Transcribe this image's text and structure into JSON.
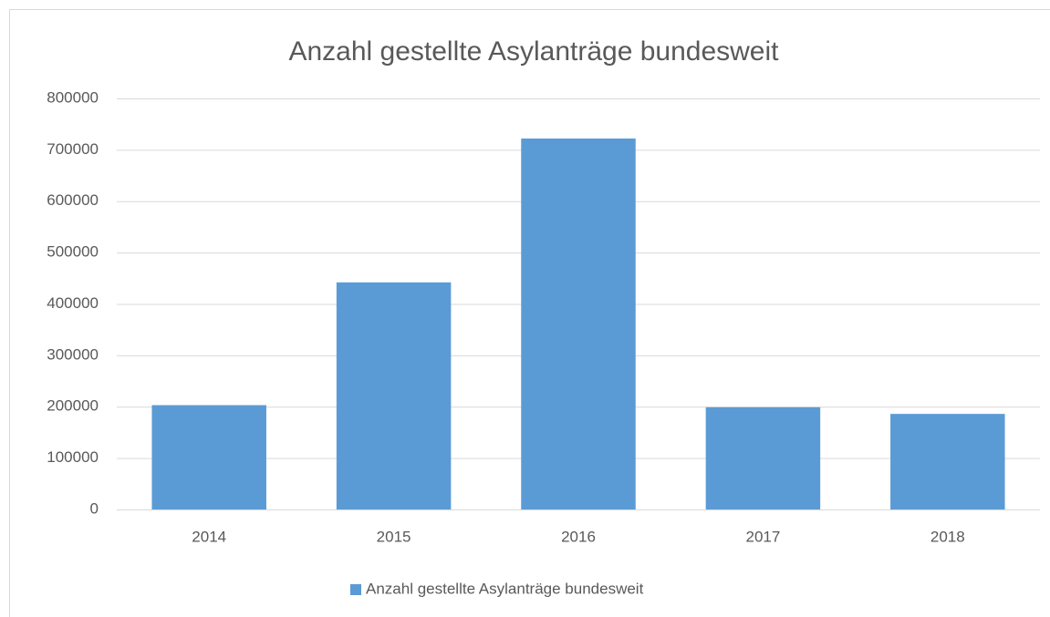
{
  "chart_data": {
    "type": "bar",
    "title": "Anzahl gestellte Asylanträge bundesweit",
    "categories": [
      "2014",
      "2015",
      "2016",
      "2017",
      "2018"
    ],
    "series": [
      {
        "name": "Anzahl gestellte Asylanträge bundesweit",
        "color": "#5b9bd5",
        "values": [
          203000,
          442000,
          722000,
          199000,
          186000
        ]
      }
    ],
    "ylim": [
      0,
      800000
    ],
    "yticks": [
      0,
      100000,
      200000,
      300000,
      400000,
      500000,
      600000,
      700000,
      800000
    ],
    "grid": true,
    "legend": "bottom"
  }
}
